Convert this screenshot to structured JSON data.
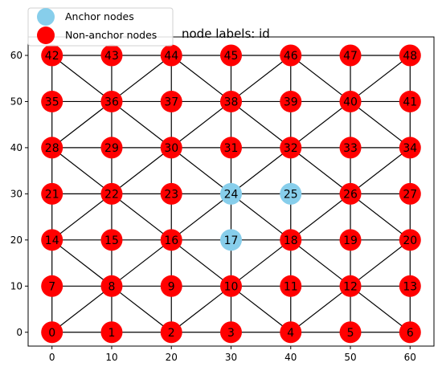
{
  "chart_data": {
    "type": "network",
    "title": "node labels: id",
    "xlim": [
      -4,
      64
    ],
    "ylim": [
      -3,
      64
    ],
    "x_ticks": [
      0,
      10,
      20,
      30,
      40,
      50,
      60
    ],
    "y_ticks": [
      0,
      10,
      20,
      30,
      40,
      50,
      60
    ],
    "grid_spacing": 10,
    "grid_columns": 7,
    "grid_rows": 7,
    "anchor_ids": [
      17,
      24,
      25
    ],
    "colors": {
      "anchor": "#87ceeb",
      "non_anchor": "#ff0000",
      "edge": "#000000"
    },
    "legend": {
      "placement": "top-left",
      "entries": [
        {
          "label": "Anchor nodes",
          "kind": "anchor"
        },
        {
          "label": "Non-anchor nodes",
          "kind": "non_anchor"
        }
      ]
    }
  }
}
